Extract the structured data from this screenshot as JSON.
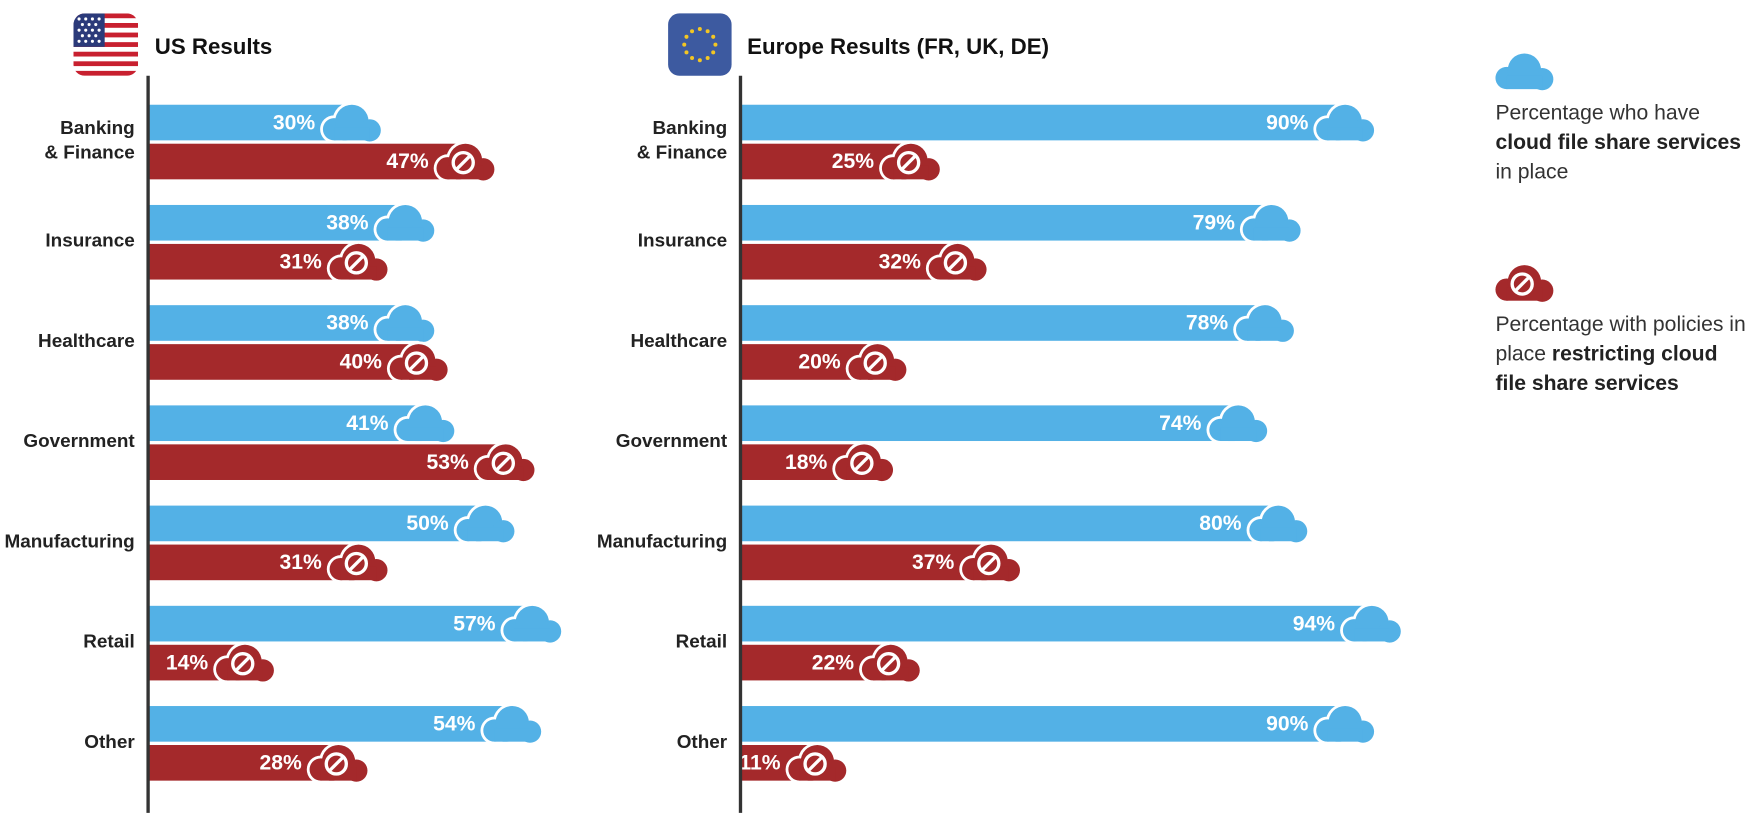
{
  "chart_data": [
    {
      "type": "bar",
      "title": "US Results",
      "categories": [
        "Banking\n& Finance",
        "Insurance",
        "Healthcare",
        "Government",
        "Manufacturing",
        "Retail",
        "Other"
      ],
      "xlim": [
        0,
        100
      ],
      "series": [
        {
          "color": "#53b1e6",
          "icon": "cloud",
          "values": [
            30,
            38,
            38,
            41,
            50,
            57,
            54
          ],
          "value_labels": [
            "30%",
            "38%",
            "38%",
            "41%",
            "50%",
            "57%",
            "54%"
          ]
        },
        {
          "color": "#a4292b",
          "icon": "restricted",
          "values": [
            47,
            31,
            40,
            53,
            31,
            14,
            28
          ],
          "value_labels": [
            "47%",
            "31%",
            "40%",
            "53%",
            "31%",
            "14%",
            "28%"
          ]
        }
      ]
    },
    {
      "type": "bar",
      "title": "Europe Results (FR, UK, DE)",
      "categories": [
        "Banking\n& Finance",
        "Insurance",
        "Healthcare",
        "Government",
        "Manufacturing",
        "Retail",
        "Other"
      ],
      "xlim": [
        0,
        100
      ],
      "series": [
        {
          "color": "#53b1e6",
          "icon": "cloud",
          "values": [
            90,
            79,
            78,
            74,
            80,
            94,
            90
          ],
          "value_labels": [
            "90%",
            "79%",
            "78%",
            "74%",
            "80%",
            "94%",
            "90%"
          ]
        },
        {
          "color": "#a4292b",
          "icon": "restricted",
          "values": [
            25,
            32,
            20,
            18,
            37,
            22,
            11
          ],
          "value_labels": [
            "25%",
            "32%",
            "20%",
            "18%",
            "37%",
            "22%",
            "11%"
          ]
        }
      ]
    }
  ],
  "legend": [
    {
      "color": "#53b1e6",
      "icon": "cloud",
      "lines": [
        [
          {
            "text": "Percentage who have"
          }
        ],
        [
          {
            "text": "cloud file share services",
            "bold": true
          }
        ],
        [
          {
            "text": "in place"
          }
        ]
      ]
    },
    {
      "color": "#a4292b",
      "icon": "restricted",
      "lines": [
        [
          {
            "text": "Percentage with policies in"
          }
        ],
        [
          {
            "text": "place "
          },
          {
            "text": "restricting cloud",
            "bold": true
          }
        ],
        [
          {
            "text": "file share services",
            "bold": true
          }
        ]
      ]
    }
  ]
}
